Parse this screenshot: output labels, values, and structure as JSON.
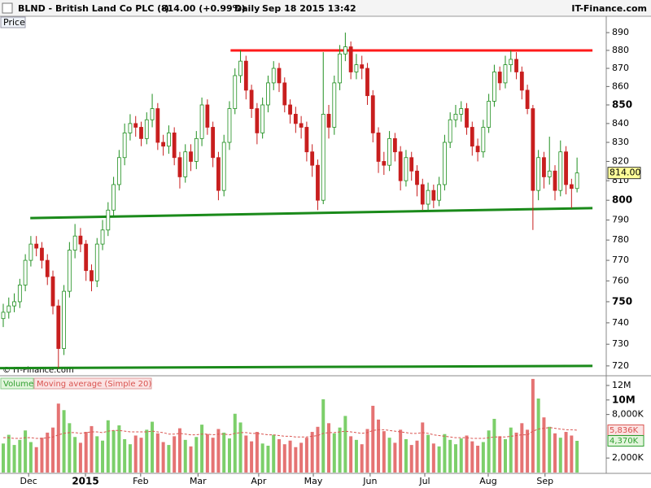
{
  "header": {
    "symbol": "BLND - British Land Co PLC (-)",
    "quote": "814.00 (+0.99%)",
    "period": "Daily",
    "timestamp": "Sep 18 2015 13:42",
    "brand": "IT-Finance.com"
  },
  "chart_data": [
    {
      "type": "candlestick",
      "panel_label": "Price",
      "watermark": "© IT-Finance.com",
      "log_scale": true,
      "up_color": "#1f8f1f",
      "down_color": "#c81e1e",
      "last_label": "814.00",
      "ylim": [
        715.5,
        899.3
      ],
      "yticks": [
        720,
        730,
        740,
        750,
        760,
        770,
        780,
        790,
        800,
        810,
        820,
        830,
        840,
        850,
        860,
        870,
        880,
        890
      ],
      "open": [
        742,
        745,
        748,
        750,
        758,
        770,
        778,
        776,
        770,
        762,
        748,
        728,
        755,
        775,
        782,
        778,
        765,
        760,
        778,
        785,
        795,
        808,
        822,
        835,
        840,
        838,
        832,
        842,
        848,
        830,
        828,
        835,
        822,
        812,
        825,
        820,
        832,
        850,
        838,
        822,
        805,
        830,
        848,
        866,
        874,
        858,
        848,
        835,
        850,
        862,
        870,
        862,
        850,
        845,
        840,
        838,
        825,
        818,
        800,
        845,
        838,
        862,
        878,
        882,
        868,
        872,
        870,
        855,
        835,
        820,
        818,
        832,
        825,
        810,
        822,
        815,
        808,
        798,
        805,
        800,
        808,
        830,
        842,
        845,
        848,
        838,
        828,
        825,
        838,
        852,
        868,
        862,
        872,
        875,
        868,
        858,
        848,
        805,
        822,
        812,
        815,
        805,
        825,
        808,
        806
      ],
      "high": [
        749,
        752,
        754,
        761,
        773,
        782,
        782,
        779,
        773,
        765,
        751,
        758,
        779,
        788,
        786,
        780,
        768,
        781,
        790,
        799,
        812,
        826,
        840,
        845,
        844,
        841,
        846,
        856,
        851,
        834,
        839,
        838,
        825,
        829,
        829,
        836,
        854,
        853,
        841,
        825,
        834,
        852,
        870,
        880,
        877,
        861,
        851,
        854,
        866,
        874,
        873,
        865,
        853,
        849,
        844,
        841,
        829,
        821,
        879,
        850,
        866,
        883,
        890,
        885,
        878,
        877,
        873,
        858,
        838,
        825,
        836,
        835,
        828,
        826,
        825,
        818,
        811,
        809,
        808,
        812,
        834,
        846,
        850,
        852,
        851,
        841,
        832,
        842,
        856,
        872,
        871,
        877,
        880,
        879,
        871,
        861,
        850,
        826,
        825,
        833,
        818,
        831,
        828,
        811,
        822
      ],
      "low": [
        738,
        742,
        745,
        747,
        755,
        767,
        772,
        766,
        758,
        744,
        719,
        725,
        752,
        771,
        774,
        760,
        755,
        757,
        775,
        782,
        792,
        805,
        818,
        831,
        833,
        828,
        829,
        838,
        826,
        823,
        824,
        818,
        806,
        809,
        815,
        816,
        828,
        834,
        817,
        800,
        802,
        826,
        845,
        862,
        853,
        843,
        829,
        832,
        846,
        858,
        857,
        846,
        840,
        835,
        832,
        820,
        812,
        795,
        798,
        832,
        834,
        858,
        874,
        864,
        864,
        864,
        850,
        830,
        814,
        813,
        815,
        820,
        805,
        807,
        810,
        802,
        795,
        795,
        796,
        797,
        805,
        827,
        838,
        841,
        834,
        823,
        820,
        822,
        835,
        849,
        858,
        859,
        868,
        864,
        853,
        845,
        785,
        800,
        806,
        808,
        800,
        802,
        803,
        796,
        804
      ],
      "close": [
        745,
        748,
        750,
        758,
        770,
        778,
        776,
        770,
        762,
        748,
        728,
        755,
        775,
        782,
        778,
        765,
        760,
        778,
        785,
        795,
        808,
        822,
        835,
        840,
        838,
        832,
        842,
        848,
        830,
        828,
        835,
        822,
        812,
        825,
        820,
        832,
        850,
        838,
        822,
        805,
        830,
        848,
        866,
        874,
        858,
        848,
        835,
        850,
        862,
        870,
        862,
        850,
        845,
        840,
        838,
        825,
        818,
        800,
        845,
        838,
        862,
        878,
        882,
        868,
        872,
        870,
        855,
        835,
        820,
        818,
        832,
        825,
        810,
        822,
        815,
        808,
        798,
        805,
        800,
        808,
        830,
        842,
        845,
        848,
        838,
        828,
        825,
        838,
        852,
        868,
        862,
        872,
        875,
        868,
        858,
        848,
        805,
        822,
        812,
        815,
        805,
        825,
        808,
        806,
        814
      ],
      "trendlines": [
        {
          "color": "#ff1a1a",
          "x": [
            41.2,
            106.8
          ],
          "y": [
            880,
            880
          ]
        },
        {
          "color": "#1a8a1a",
          "x": [
            4.9,
            106.8
          ],
          "y": [
            791,
            796
          ]
        },
        {
          "color": "#1a8a1a",
          "x": [
            -0.6,
            106.8
          ],
          "y": [
            719,
            720
          ]
        }
      ]
    },
    {
      "type": "bar",
      "up_color": "#7ccf6a",
      "down_color": "#e57373",
      "ylim": [
        0,
        13000000
      ],
      "yticks": [
        {
          "value": 2000000,
          "label": "2,000K"
        },
        {
          "value": 8000000,
          "label": "8,000K"
        },
        {
          "value": 10000000,
          "label": "10M"
        },
        {
          "value": 12000000,
          "label": "12M"
        }
      ],
      "series": [
        {
          "name": "Volume",
          "color": "#2e9e2e",
          "last_label": "4,370K",
          "values": [
            4000000,
            5200000,
            3800000,
            4500000,
            5800000,
            4200000,
            3500000,
            4800000,
            5500000,
            6200000,
            9500000,
            8600000,
            6800000,
            4900000,
            4100000,
            5600000,
            6400000,
            5000000,
            4400000,
            7200000,
            5800000,
            6500000,
            4600000,
            3900000,
            5100000,
            4800000,
            5900000,
            7000000,
            5400000,
            4200000,
            3800000,
            5000000,
            6100000,
            4500000,
            3600000,
            4900000,
            6600000,
            5300000,
            4800000,
            6000000,
            5500000,
            4700000,
            8100000,
            6900000,
            5100000,
            4300000,
            5600000,
            4000000,
            3700000,
            5200000,
            4600000,
            3900000,
            4400000,
            3500000,
            4100000,
            4800000,
            5600000,
            6300000,
            10100000,
            6800000,
            5400000,
            6200000,
            7800000,
            5000000,
            4500000,
            3900000,
            6000000,
            9200000,
            7300000,
            5700000,
            4800000,
            4100000,
            5900000,
            4600000,
            3800000,
            4400000,
            6900000,
            5200000,
            4000000,
            3600000,
            5300000,
            4500000,
            3900000,
            4700000,
            5100000,
            4300000,
            3700000,
            4200000,
            5800000,
            7400000,
            5000000,
            4600000,
            6200000,
            5500000,
            6800000,
            5900000,
            12900000,
            10200000,
            7600000,
            6300000,
            5400000,
            4800000,
            5600000,
            5100000,
            4370000
          ]
        },
        {
          "name": "Moving average (Simple 20)",
          "color": "#d9534f",
          "last_label": "5,836K",
          "values": [
            4800000,
            4800000,
            4700000,
            4700000,
            4800000,
            4800000,
            4700000,
            4700000,
            4800000,
            4900000,
            5200000,
            5400000,
            5500000,
            5500000,
            5400000,
            5500000,
            5600000,
            5600000,
            5500000,
            5700000,
            5800000,
            5800000,
            5700000,
            5600000,
            5600000,
            5600000,
            5600000,
            5700000,
            5600000,
            5500000,
            5300000,
            5300000,
            5400000,
            5300000,
            5200000,
            5200000,
            5300000,
            5300000,
            5200000,
            5300000,
            5300000,
            5200000,
            5400000,
            5500000,
            5500000,
            5400000,
            5400000,
            5300000,
            5200000,
            5200000,
            5100000,
            5000000,
            5000000,
            4900000,
            4900000,
            4900000,
            5000000,
            5100000,
            5400000,
            5500000,
            5500000,
            5600000,
            5700000,
            5600000,
            5500000,
            5400000,
            5500000,
            5800000,
            5900000,
            5900000,
            5800000,
            5700000,
            5600000,
            5500000,
            5400000,
            5400000,
            5500000,
            5400000,
            5200000,
            5100000,
            5000000,
            4900000,
            4800000,
            4800000,
            4800000,
            4700000,
            4700000,
            4700000,
            4800000,
            4900000,
            4900000,
            4900000,
            5000000,
            5100000,
            5200000,
            5200000,
            5700000,
            6000000,
            6100000,
            6200000,
            6100000,
            6000000,
            5900000,
            5900000,
            5836000
          ]
        }
      ]
    }
  ],
  "xticks": [
    {
      "value": 4.6,
      "label": "Dec"
    },
    {
      "value": 14.9,
      "label": "2015"
    },
    {
      "value": 24.9,
      "label": "Feb"
    },
    {
      "value": 35.3,
      "label": "Mar"
    },
    {
      "value": 46.3,
      "label": "Apr"
    },
    {
      "value": 56.2,
      "label": "May"
    },
    {
      "value": 66.5,
      "label": "Jun"
    },
    {
      "value": 76.4,
      "label": "Jul"
    },
    {
      "value": 87.9,
      "label": "Aug"
    },
    {
      "value": 98.2,
      "label": "Sep"
    }
  ]
}
